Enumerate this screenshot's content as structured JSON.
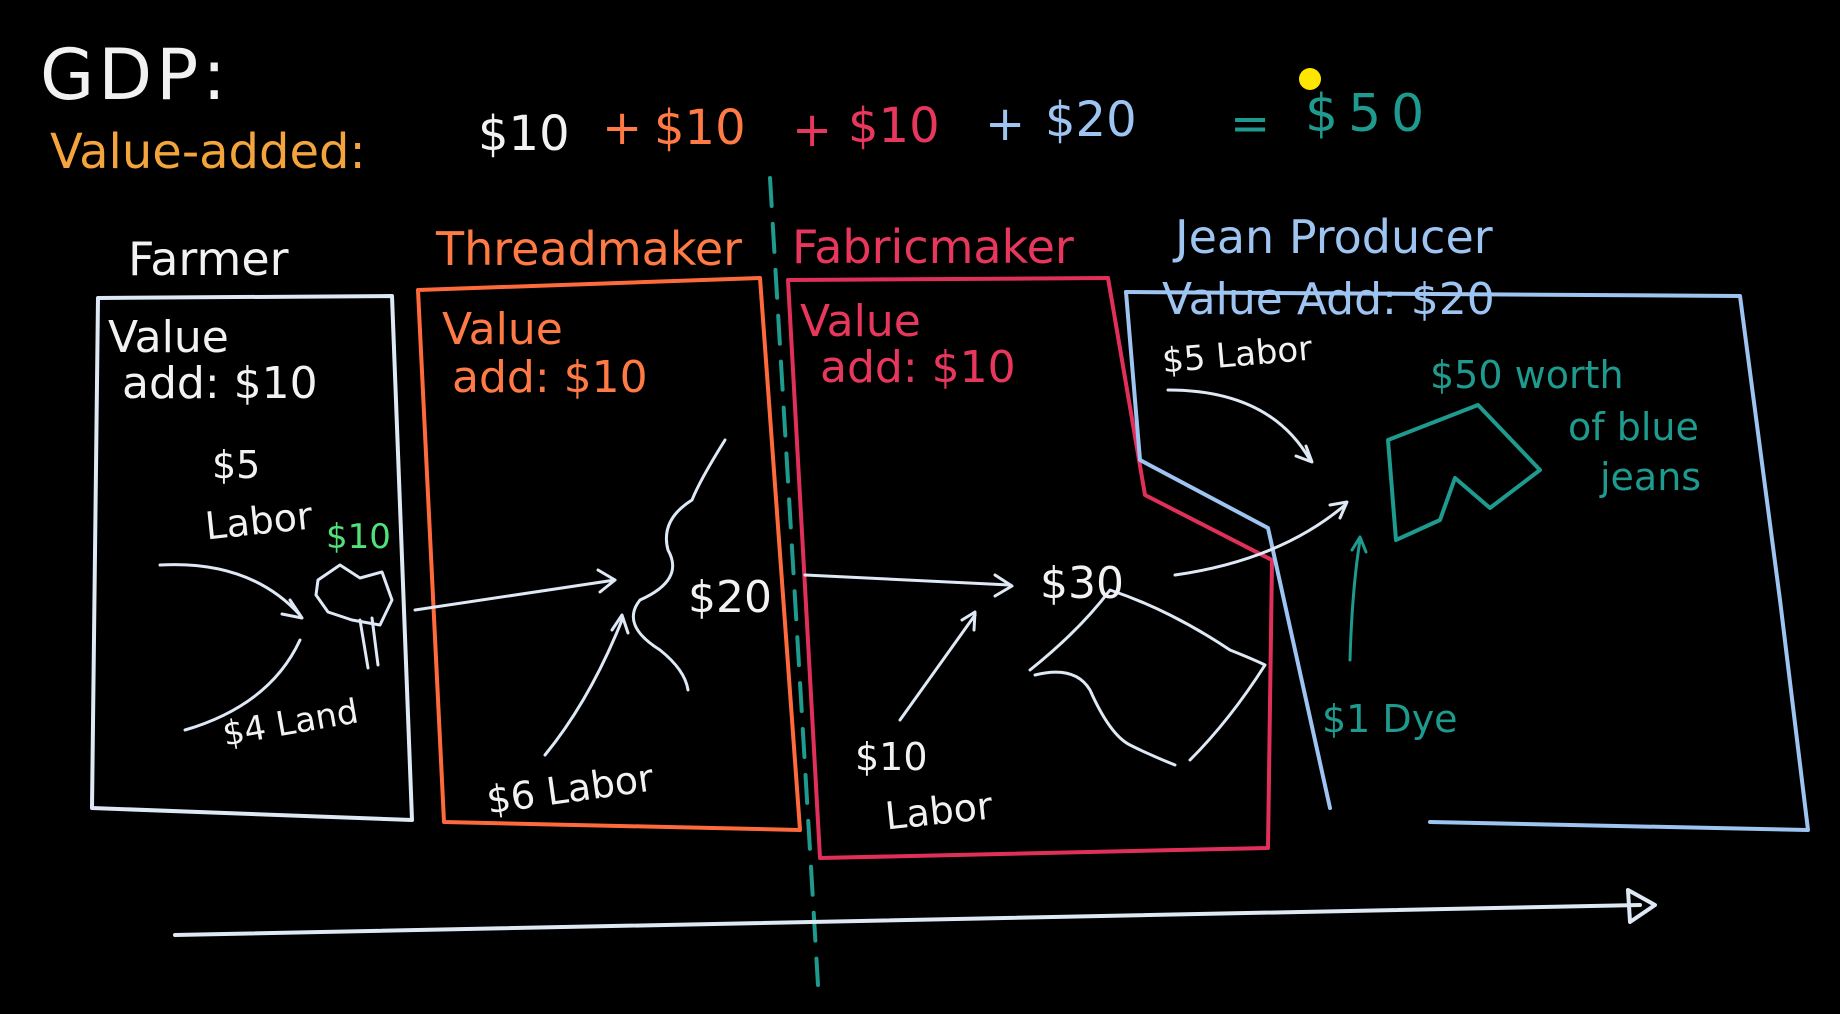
{
  "title": "GDP:",
  "summary": {
    "label": "Value-added:",
    "farmer_term": "$10",
    "plus1": "+",
    "thread_term": "$10",
    "plus2": "+",
    "fabric_term": "$10",
    "plus3": "+",
    "jean_term": "$20",
    "equals": "=",
    "total": "$50"
  },
  "stages": {
    "farmer": {
      "heading": "Farmer",
      "value_line1": "Value",
      "value_line2": "add: $10",
      "labor_amount": "$5",
      "labor_word": "Labor",
      "land": "$4 Land",
      "output": "$10"
    },
    "threadmaker": {
      "heading": "Threadmaker",
      "value_line1": "Value",
      "value_line2": "add: $10",
      "labor": "$6 Labor",
      "output": "$20"
    },
    "fabricmaker": {
      "heading": "Fabricmaker",
      "value_line1": "Value",
      "value_line2": "add: $10",
      "labor_amount": "$10",
      "labor_word": "Labor",
      "output": "$30"
    },
    "jean_producer": {
      "heading": "Jean Producer",
      "value_line": "Value Add: $20",
      "labor": "$5 Labor",
      "product_line1": "$50 worth",
      "product_line2": "of blue",
      "product_line3": "jeans",
      "dye": "$1 Dye"
    }
  },
  "colors": {
    "background": "#000000",
    "farmer": "#dfe9f5",
    "threadmaker": "#ff6a3d",
    "fabricmaker": "#e0305a",
    "jean_producer": "#9ec4f2",
    "teal": "#1f9a8e",
    "value_added_label": "#f4a43c",
    "pointer": "#ffe600"
  },
  "icons": [
    "tree-icon",
    "thread-icon",
    "fabric-icon",
    "jeans-icon",
    "arrow-icon"
  ]
}
